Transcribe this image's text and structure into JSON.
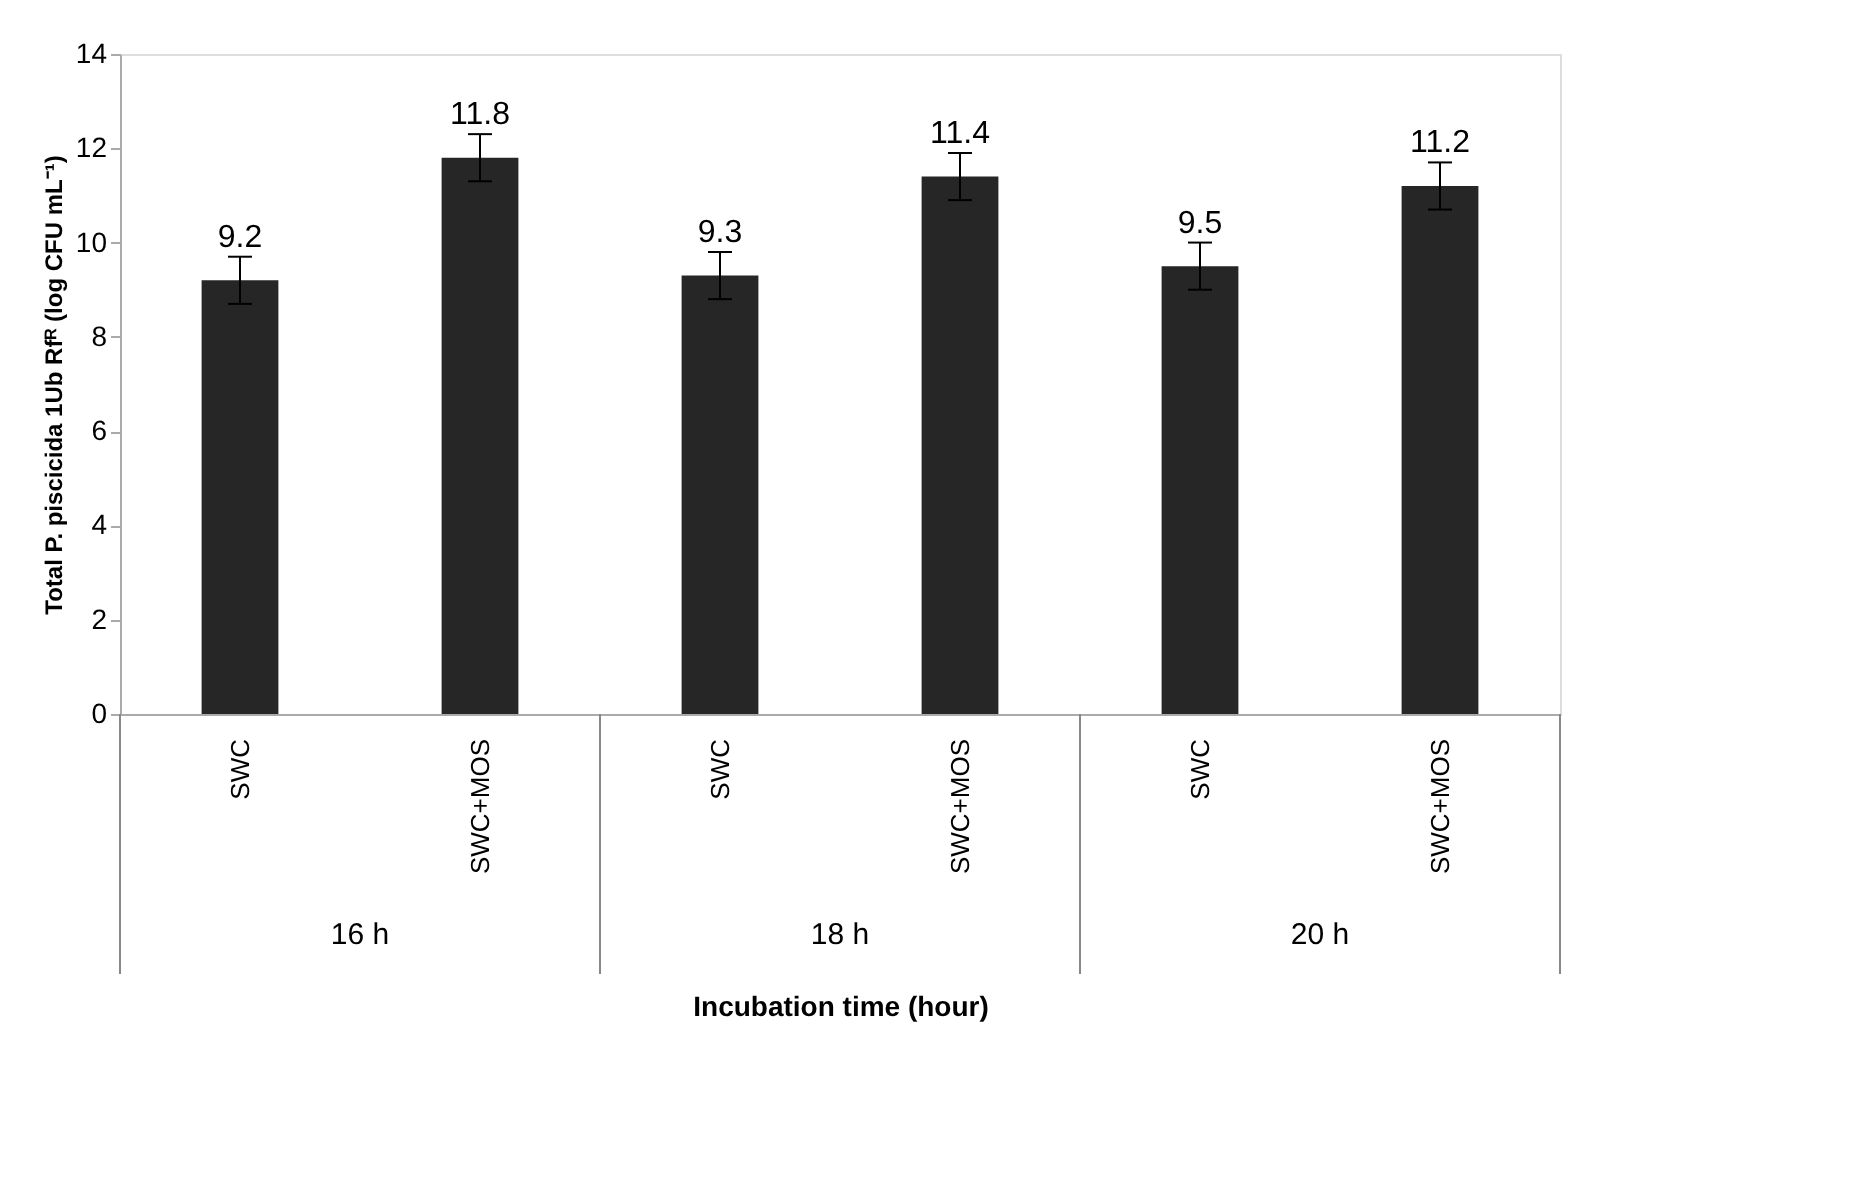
{
  "chart_data": {
    "type": "bar",
    "categories": [
      "SWC",
      "SWC+MOS",
      "SWC",
      "SWC+MOS",
      "SWC",
      "SWC+MOS"
    ],
    "values": [
      9.2,
      11.8,
      9.3,
      11.4,
      9.5,
      11.2
    ],
    "errors": [
      0.5,
      0.5,
      0.5,
      0.5,
      0.5,
      0.5
    ],
    "color": "#262626",
    "data_labels": true,
    "ylim": [
      0,
      14
    ],
    "yticks": [
      0,
      2,
      4,
      6,
      8,
      10,
      12,
      14
    ],
    "xlabel": "Incubation time (hour)",
    "ylabel": "Total P. piscicida 1Ub Rfᴿ (log CFU mL⁻¹)",
    "annotations": [
      "16 h",
      "18  h",
      "20 h"
    ],
    "grid": false
  }
}
